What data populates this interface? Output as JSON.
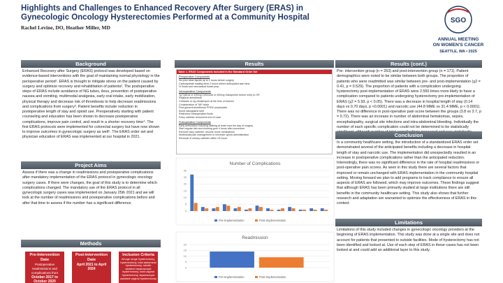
{
  "header": {
    "title": "Highlights and Challenges to Enhanced Recovery After Surgery (ERAS) in Gynecologic Oncology Hysterectomies Performed at a Community Hospital",
    "authors": "Rachel Levine, DO, Heather Miller, MD",
    "logo": {
      "org": "SGO",
      "line1": "ANNUAL MEETING",
      "line2": "ON WOMEN'S CANCER",
      "line3": "SEATTLE, WA • 2025"
    }
  },
  "background": {
    "heading": "Background",
    "text": "Enhanced Recovery after Surgery (ERAS) protocol was developed based on evidence-based interventions with the goal of maintaining normal physiology in the perioperative period¹. ERAS is thought to mitigate stress on the patient caused by surgery and optimize recovery and rehabilitation of patients². The postoperative steps of ERAS include avoidance of NG tubes, ileus, prevention of postoperative nausea and vomiting, multimodal analgesia, early oral intake, early mobilization, physical therapy and decrease risk of thrombosis to help decrease readmissions and complications from surgery³. Patient benefits include reduction in postoperative length of stay and opioid use. Preoperatively starting with patient counseling and education has been shown to decrease postoperative complications, improve pain control, and result in a shorter recovery time⁴. The first ERAS protocols were implemented for colorectal surgery but have now shown to improve outcomes in gynecologic surgery as well⁵. The ERAS order set and physician education of ERAS was implemented at our hospital in 2021."
  },
  "project_aims": {
    "heading": "Project Aims",
    "text": "Assess if there was a change in readmissions and postoperative complications after mandatory implementation of the ERAS protocol in gynecologic oncology surgery cases. If there were changes, the goal of this study is to determine which complications changed. The mandatory use of the ERAS protocol in all gynecologic surgery cases was implemented on January 25th 2021 and we will look at the number of readmissions and postoperative complications before and after that time to assess if the number has a significant difference."
  },
  "methods": {
    "heading": "Methods",
    "boxes": [
      {
        "title": "Pre-Intervention Date",
        "text": "Postoperative readmissions and complications from",
        "emphasis": "October 2017 to October 2020"
      },
      {
        "title": "Post-Intervention Date",
        "emphasis": "April 2021 to April 2024"
      },
      {
        "title": "Inclusion Criteria",
        "text": "All age range hysterectomy, hysterectomy, total abdominal hysterectomy, robotic assisted laparoscopic hysterectomy, total vaginal hysterectomy, laparoscopic assisted vaginal hysterectomy"
      }
    ]
  },
  "results": {
    "heading": "Results",
    "table": {
      "title": "Table 1. ERAS Components Included in the Standard Order Set",
      "groups": [
        {
          "heading": "Preoperative Components",
          "items": [
            "No prior clear liquids up to 2 hours before surgery",
            "Carbohydrate loading drink 2 hours before anticipated start time",
            "IV fluids and mechanical bowel prep"
          ]
        },
        {
          "heading": "Intraoperative Components",
          "items": [
            "1g Tylenol or 400mg Celecoxib or 600mg Gabapentin before entry to OR",
            "Regional anesthesia",
            "Cefazolin or 2g clindamycin at the time of incision",
            "Consideration of TAP block",
            "Post-general anesthesia PONV prophylaxis",
            "Avoid nasogastric tube",
            "Restrictive intraoperative fluids",
            "Foley catheter removal at end of case"
          ]
        },
        {
          "heading": "Postoperative Components",
          "items": [
            "Early ambulation including walking at least once the day of surgery",
            "Start regular diet and chewing gum 4 hours after procedure",
            "Remove foley catheter, resume home medications",
            "Multimodal pain management to minimize opioid administration",
            "Removal of urinary catheter within 24 hours"
          ]
        }
      ]
    }
  },
  "results_cont": {
    "heading": "Results (cont.)",
    "text": "Pre- intervention group (n = 263) and post-intervention group (n = 171). Patient demographics were noted to be similar between both groups. The proportion of patients who were readmitted was similar between pre- and post-implementation (χ2 = 0.41, p = 0.529). The proportion of patients with a complication undergoing hysterectomy post-implementation of ERAS were 2.550 times more likely to have a complication compared to patients undergoing hysterectomy pre-implementation of ERAS (χ2 = 5.93, p < 0.05). There was a decrease in hospital length of stay (0.14 days vs 0.70 days, p <0.0001) and narcotic use (44.8 MME vs 31.4 MME, p < 0.0001). There was no difference in post-operative pain score between the groups (3.8 vs 3.7, p = 0.72). There was an increase in number of abdominal hematomas, sepsis, encephalopathy, surgical site infections and intra-abdominal bleeding. Individually the number of each specific complication could not be determined to be statistically significant, although number of total complications increased and was statistically significant."
  },
  "conclusion": {
    "heading": "Conclusion",
    "text": "In a community healthcare setting, the introduction of a standardized ERAS order set demonstrated several of the anticipated benefits including a decrease in hospital length of stay and narcotic use. The implementation did unexpectedly resulted in an increase in postoperative complications rather than the anticipated reduction. Interestingly, there was no significant difference in the rate of hospital readmissions or post-operative pain scores. As seen in this study there are several factors that improved or remain unchanged with ERAS implementation in the community hospital setting. Moving forward we plan to add programs to track compliance to ensure all aspects of ERAS are followed, which may improve outcomes. These findings suggest that although ERAS has been primarily studied at large institutions there are still benefits in the community healthcare setting. This study also shows that further research and adaptation are warranted to optimize the effectiveness of ERAS in this context."
  },
  "limitations": {
    "heading": "Limitations",
    "text": "Limitations of this study included changes in gynecologic oncology providers at the beginning of ERAS implementation. This study was done at a single site and does not account for patients that presented to outside facilities. Mode of hysterectomy has not been identified and looked at. Use of each step of ERAS in these cases has not been looked at and could add an additional layer to this study."
  },
  "chart_data": [
    {
      "type": "bar",
      "title": "Number of Complications",
      "categories": [
        null,
        null,
        null,
        null,
        null,
        null,
        null,
        null,
        null,
        null,
        null,
        null,
        null
      ],
      "series": [
        {
          "name": "Pre-Implementation",
          "color": "#4472c4",
          "values": [
            27,
            3,
            2,
            5,
            2,
            1,
            4,
            2,
            1,
            3,
            1,
            2,
            2
          ]
        },
        {
          "name": "Post-Implementation",
          "color": "#ed7d31",
          "values": [
            6,
            2,
            3,
            4,
            3,
            2,
            3,
            1,
            2,
            2,
            1,
            1,
            1
          ]
        }
      ],
      "ylim": [
        0,
        30
      ],
      "yticks": [
        0,
        5,
        10,
        15,
        20,
        25,
        30
      ],
      "grid": true,
      "legend": "bottom"
    },
    {
      "type": "bar",
      "title": "Readmission",
      "categories": [
        null
      ],
      "series": [
        {
          "name": "Pre-Implementation",
          "color": "#4472c4",
          "values": [
            14
          ]
        },
        {
          "name": "Post-Implementation",
          "color": "#ed7d31",
          "values": [
            9
          ]
        }
      ],
      "ylim": [
        0,
        20
      ],
      "yticks": [
        0,
        5,
        10,
        15,
        20
      ],
      "grid": true,
      "legend": "bottom"
    }
  ]
}
